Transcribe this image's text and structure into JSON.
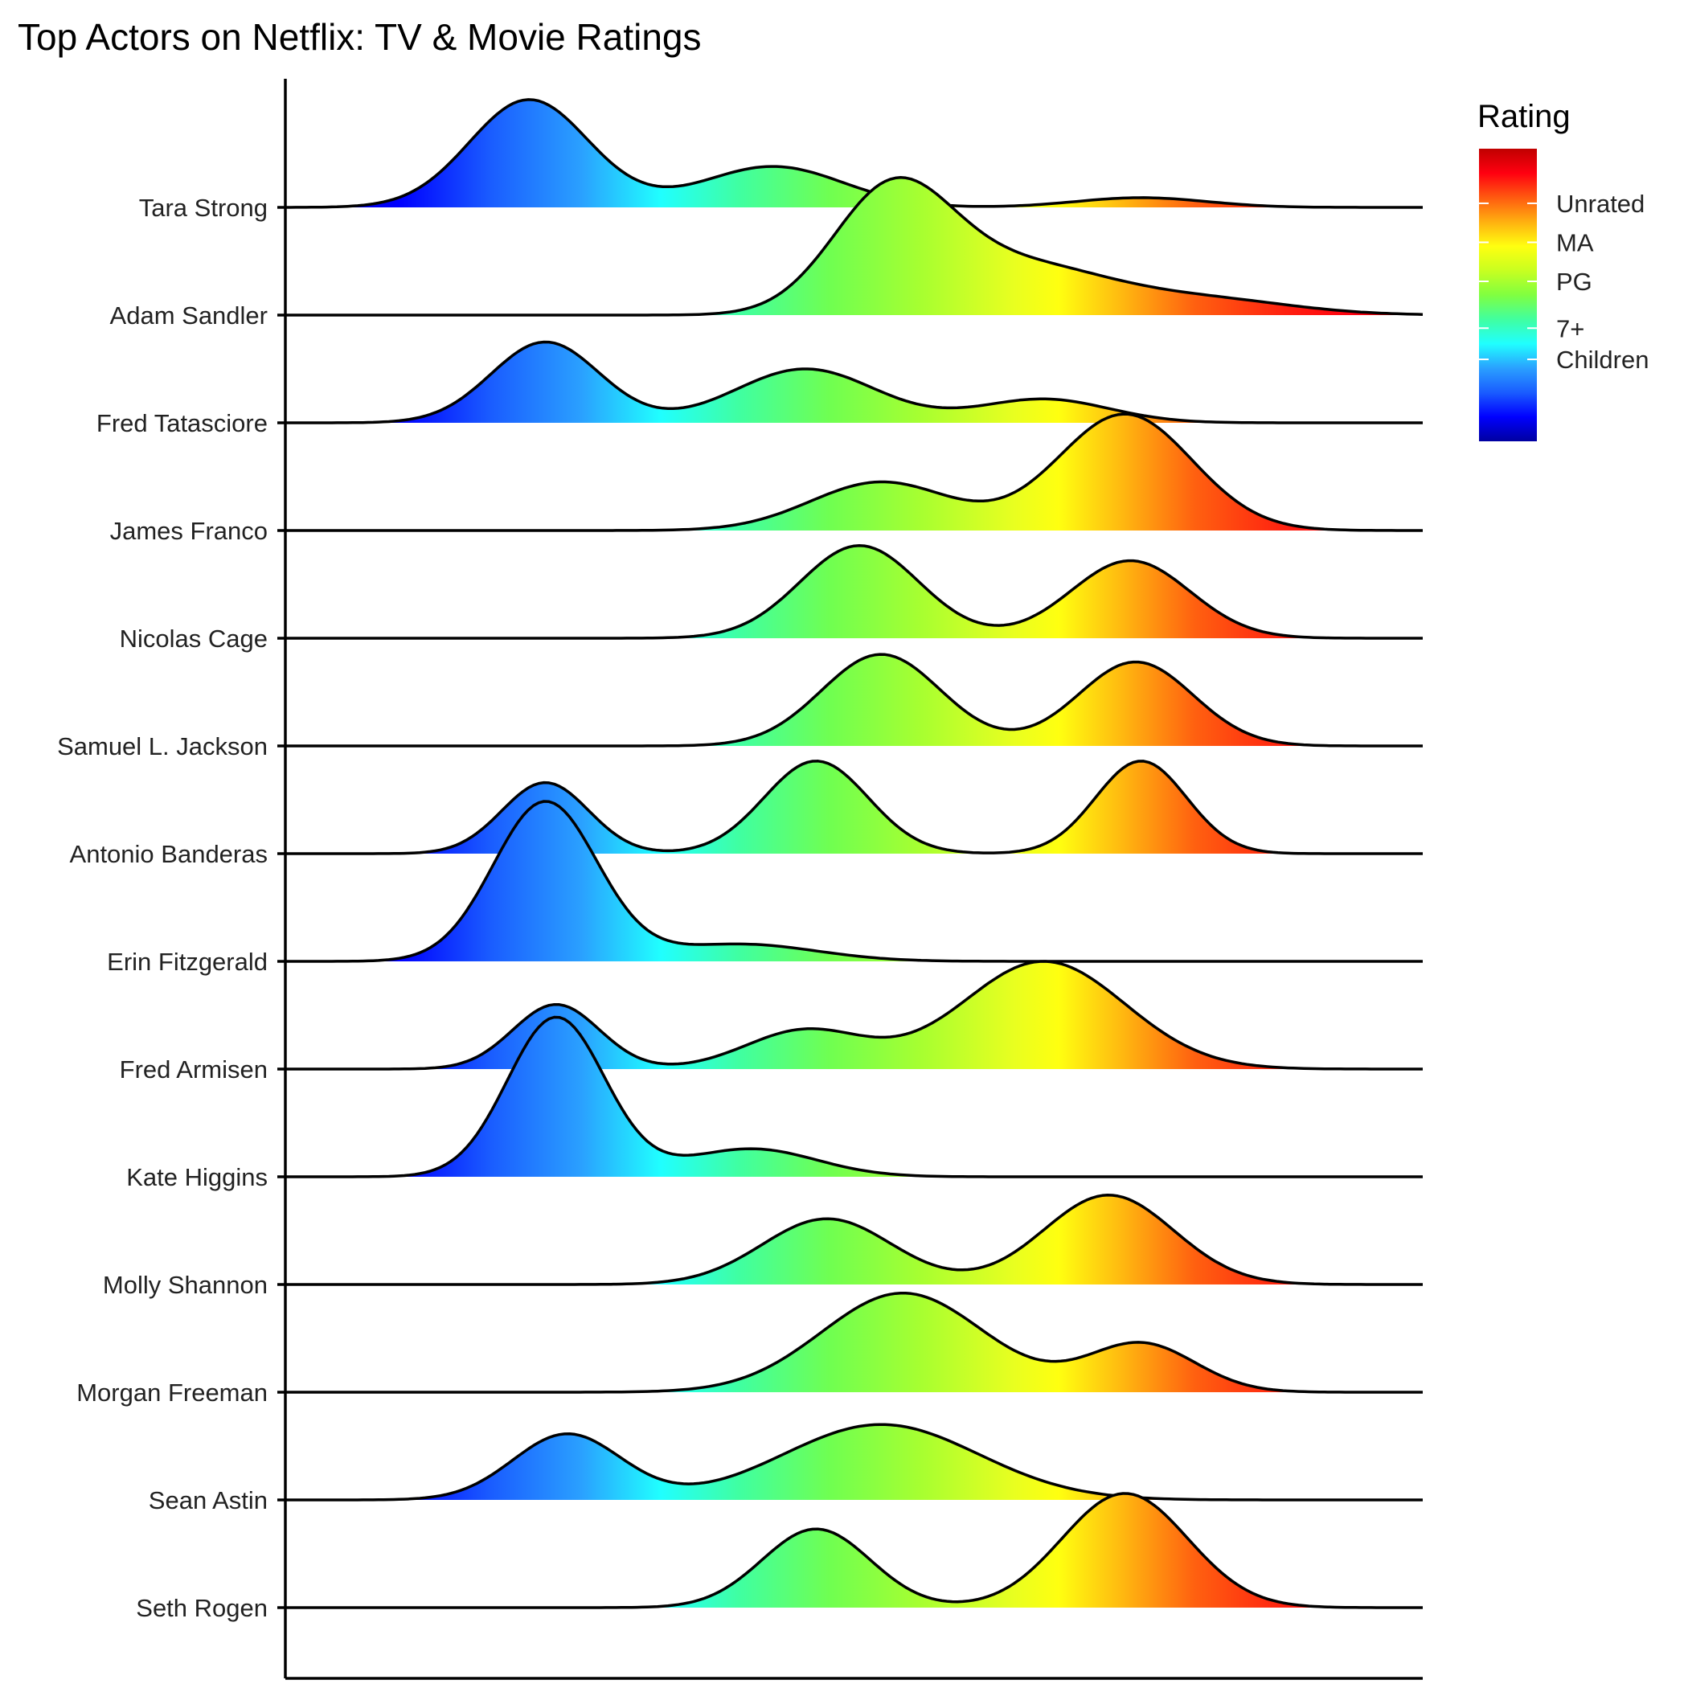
{
  "chart_data": {
    "type": "ridgeline",
    "title": "Top Actors on Netflix: TV & Movie Ratings",
    "xlabel": "",
    "ylabel": "",
    "legend": {
      "title": "Rating",
      "position": "right",
      "labels": [
        {
          "label": "Unrated",
          "value": 7.1
        },
        {
          "label": "MA",
          "value": 6.1
        },
        {
          "label": "PG",
          "value": 5.1
        },
        {
          "label": "7+",
          "value": 3.9
        },
        {
          "label": "Children",
          "value": 3.1
        }
      ],
      "range": [
        1,
        8.5
      ]
    },
    "colorscale": [
      "#0000a0",
      "#0000ff",
      "#1a5cff",
      "#2aa0ff",
      "#20ffff",
      "#40ffa0",
      "#80ff40",
      "#c8ff20",
      "#ffff10",
      "#ffb010",
      "#ff5a10",
      "#ff0010",
      "#c00000"
    ],
    "xlim": [
      0,
      10.5
    ],
    "ridge_height": 1.18,
    "grid": false,
    "series": [
      {
        "name": "Tara Strong",
        "peaks": [
          [
            2.25,
            0.55,
            1.0
          ],
          [
            4.5,
            0.65,
            0.38
          ],
          [
            7.9,
            0.6,
            0.09
          ]
        ]
      },
      {
        "name": "Adam Sandler",
        "peaks": [
          [
            5.6,
            0.55,
            1.12
          ],
          [
            6.8,
            0.8,
            0.45
          ],
          [
            8.5,
            0.8,
            0.14
          ]
        ]
      },
      {
        "name": "Fred Tatasciore",
        "peaks": [
          [
            2.4,
            0.5,
            0.75
          ],
          [
            4.8,
            0.65,
            0.5
          ],
          [
            7.0,
            0.6,
            0.22
          ]
        ]
      },
      {
        "name": "James Franco",
        "peaks": [
          [
            5.5,
            0.65,
            0.45
          ],
          [
            7.75,
            0.62,
            1.08
          ]
        ]
      },
      {
        "name": "Nicolas Cage",
        "peaks": [
          [
            5.3,
            0.55,
            0.86
          ],
          [
            7.8,
            0.55,
            0.72
          ]
        ]
      },
      {
        "name": "Samuel L. Jackson",
        "peaks": [
          [
            5.5,
            0.55,
            0.85
          ],
          [
            7.85,
            0.53,
            0.78
          ]
        ]
      },
      {
        "name": "Antonio Banderas",
        "peaks": [
          [
            2.4,
            0.4,
            0.66
          ],
          [
            4.9,
            0.48,
            0.86
          ],
          [
            7.9,
            0.42,
            0.86
          ]
        ]
      },
      {
        "name": "Erin Fitzgerald",
        "peaks": [
          [
            2.4,
            0.48,
            1.48
          ],
          [
            4.2,
            0.7,
            0.16
          ]
        ]
      },
      {
        "name": "Fred Armisen",
        "peaks": [
          [
            2.5,
            0.4,
            0.6
          ],
          [
            4.8,
            0.55,
            0.36
          ],
          [
            7.0,
            0.75,
            1.0
          ]
        ]
      },
      {
        "name": "Kate Higgins",
        "peaks": [
          [
            2.5,
            0.45,
            1.48
          ],
          [
            4.3,
            0.6,
            0.26
          ]
        ]
      },
      {
        "name": "Molly Shannon",
        "peaks": [
          [
            5.0,
            0.6,
            0.61
          ],
          [
            7.6,
            0.6,
            0.83
          ]
        ]
      },
      {
        "name": "Morgan Freeman",
        "peaks": [
          [
            5.7,
            0.75,
            0.92
          ],
          [
            7.9,
            0.5,
            0.45
          ]
        ]
      },
      {
        "name": "Sean Astin",
        "peaks": [
          [
            2.6,
            0.5,
            0.61
          ],
          [
            5.5,
            0.9,
            0.7
          ]
        ]
      },
      {
        "name": "Seth Rogen",
        "peaks": [
          [
            4.9,
            0.5,
            0.73
          ],
          [
            7.75,
            0.58,
            1.06
          ]
        ]
      }
    ]
  }
}
